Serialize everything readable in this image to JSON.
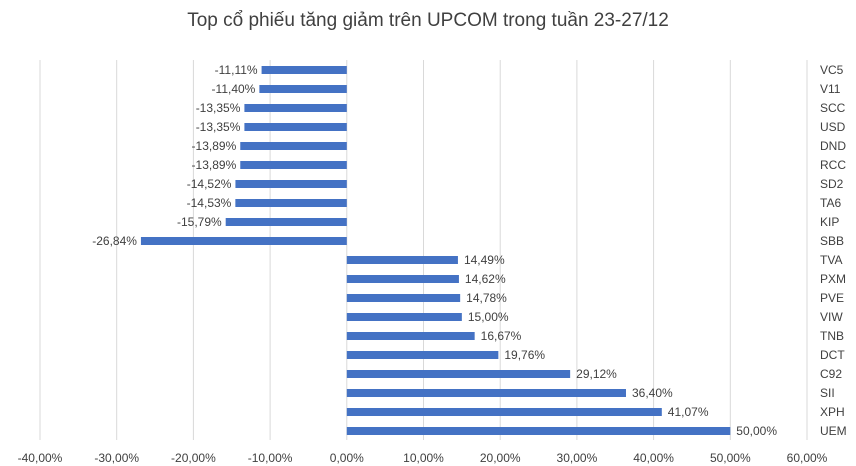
{
  "chart_data": {
    "type": "bar",
    "orientation": "horizontal",
    "title": "Top cổ phiếu tăng giảm trên UPCOM trong tuần 23-27/12",
    "categories": [
      "VC5",
      "V11",
      "SCC",
      "USD",
      "DND",
      "RCC",
      "SD2",
      "TA6",
      "KIP",
      "SBB",
      "TVA",
      "PXM",
      "PVE",
      "VIW",
      "TNB",
      "DCT",
      "C92",
      "SII",
      "XPH",
      "UEM"
    ],
    "values": [
      -11.11,
      -11.4,
      -13.35,
      -13.35,
      -13.89,
      -13.89,
      -14.52,
      -14.53,
      -15.79,
      -26.84,
      14.49,
      14.62,
      14.78,
      15.0,
      16.67,
      19.76,
      29.12,
      36.4,
      41.07,
      50.0
    ],
    "data_labels": [
      "-11,11%",
      "-11,40%",
      "-13,35%",
      "-13,35%",
      "-13,89%",
      "-13,89%",
      "-14,52%",
      "-14,53%",
      "-15,79%",
      "-26,84%",
      "14,49%",
      "14,62%",
      "14,78%",
      "15,00%",
      "16,67%",
      "19,76%",
      "29,12%",
      "36,40%",
      "41,07%",
      "50,00%"
    ],
    "x_ticks": [
      -40,
      -30,
      -20,
      -10,
      0,
      10,
      20,
      30,
      40,
      50,
      60
    ],
    "x_tick_labels": [
      "-40,00%",
      "-30,00%",
      "-20,00%",
      "-10,00%",
      "0,00%",
      "10,00%",
      "20,00%",
      "30,00%",
      "40,00%",
      "50,00%",
      "60,00%"
    ],
    "xlim": [
      -40,
      60
    ],
    "xlabel": "",
    "ylabel": "",
    "grid": "vertical",
    "legend": "none",
    "bar_color": "#4472C4",
    "grid_color": "#D9D9D9"
  }
}
